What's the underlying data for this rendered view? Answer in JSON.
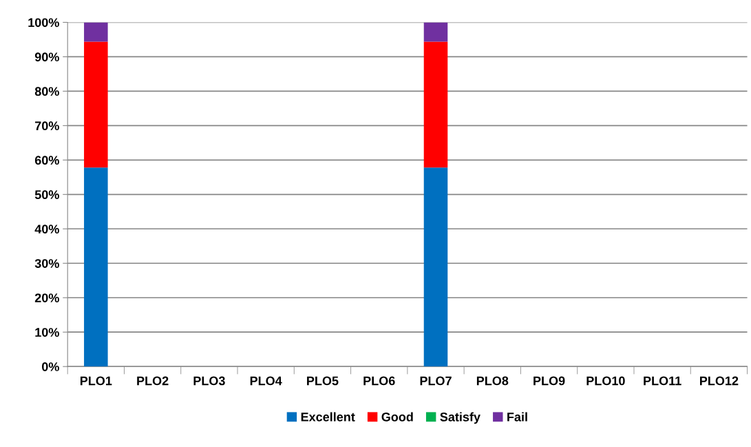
{
  "chart_data": {
    "type": "bar",
    "stacked": true,
    "categories": [
      "PLO1",
      "PLO2",
      "PLO3",
      "PLO4",
      "PLO5",
      "PLO6",
      "PLO7",
      "PLO8",
      "PLO9",
      "PLO10",
      "PLO11",
      "PLO12"
    ],
    "series": [
      {
        "name": "Excellent",
        "color": "#0070c0",
        "values": [
          57.8,
          null,
          null,
          null,
          null,
          null,
          57.8,
          null,
          null,
          null,
          null,
          null
        ]
      },
      {
        "name": "Good",
        "color": "#ff0000",
        "values": [
          36.6,
          null,
          null,
          null,
          null,
          null,
          36.6,
          null,
          null,
          null,
          null,
          null
        ]
      },
      {
        "name": "Satisfy",
        "color": "#00b050",
        "values": [
          0,
          null,
          null,
          null,
          null,
          null,
          0,
          null,
          null,
          null,
          null,
          null
        ]
      },
      {
        "name": "Fail",
        "color": "#7030a0",
        "values": [
          5.6,
          null,
          null,
          null,
          null,
          null,
          5.6,
          null,
          null,
          null,
          null,
          null
        ]
      }
    ],
    "ylim": [
      0,
      100
    ],
    "yticks": [
      {
        "value": 0,
        "label": "0%"
      },
      {
        "value": 10,
        "label": "10%"
      },
      {
        "value": 20,
        "label": "20%"
      },
      {
        "value": 30,
        "label": "30%"
      },
      {
        "value": 40,
        "label": "40%"
      },
      {
        "value": 50,
        "label": "50%"
      },
      {
        "value": 60,
        "label": "60%"
      },
      {
        "value": 70,
        "label": "70%"
      },
      {
        "value": 80,
        "label": "80%"
      },
      {
        "value": 90,
        "label": "90%"
      },
      {
        "value": 100,
        "label": "100%"
      }
    ],
    "grid": "y",
    "legend": "bottom"
  }
}
